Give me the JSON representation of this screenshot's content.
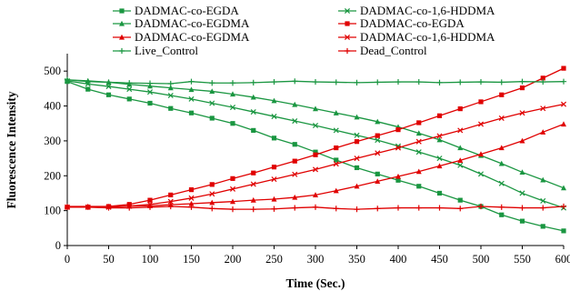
{
  "chart_data": {
    "type": "line",
    "xlabel": "Time (Sec.)",
    "ylabel": "Fluorescence Intensity",
    "xlim": [
      0,
      600
    ],
    "ylim": [
      0,
      550
    ],
    "xticks": [
      0,
      50,
      100,
      150,
      200,
      250,
      300,
      350,
      400,
      450,
      500,
      550,
      600
    ],
    "yticks": [
      0,
      100,
      200,
      300,
      400,
      500
    ],
    "grid": false,
    "legend_position": "top",
    "series": [
      {
        "name": "DADMAC-co-EGDA",
        "color": "#1a9641",
        "marker": "square",
        "x": [
          0,
          25,
          50,
          75,
          100,
          125,
          150,
          175,
          200,
          225,
          250,
          275,
          300,
          325,
          350,
          375,
          400,
          425,
          450,
          475,
          500,
          525,
          550,
          575,
          600
        ],
        "y": [
          470,
          448,
          432,
          420,
          408,
          393,
          380,
          365,
          350,
          330,
          308,
          290,
          268,
          245,
          223,
          205,
          187,
          170,
          150,
          130,
          112,
          88,
          70,
          55,
          42
        ]
      },
      {
        "name": "DADMAC-co-EGDMA",
        "color": "#1a9641",
        "marker": "triangle",
        "x": [
          0,
          25,
          50,
          75,
          100,
          125,
          150,
          175,
          200,
          225,
          250,
          275,
          300,
          325,
          350,
          375,
          400,
          425,
          450,
          475,
          500,
          525,
          550,
          575,
          600
        ],
        "y": [
          475,
          472,
          468,
          462,
          457,
          452,
          447,
          442,
          434,
          425,
          415,
          404,
          392,
          380,
          368,
          355,
          340,
          322,
          303,
          280,
          258,
          235,
          210,
          188,
          165
        ]
      },
      {
        "name": "DADMAC-co-1,6-HDDMA",
        "color": "#1a9641",
        "marker": "cross",
        "x": [
          0,
          25,
          50,
          75,
          100,
          125,
          150,
          175,
          200,
          225,
          250,
          275,
          300,
          325,
          350,
          375,
          400,
          425,
          450,
          475,
          500,
          525,
          550,
          575,
          600
        ],
        "y": [
          472,
          463,
          456,
          448,
          440,
          430,
          420,
          408,
          396,
          383,
          370,
          357,
          344,
          330,
          316,
          302,
          285,
          268,
          250,
          230,
          205,
          178,
          150,
          128,
          108
        ]
      },
      {
        "name": "DADMAC-co-EGDA",
        "color": "#e00000",
        "marker": "square",
        "x": [
          0,
          25,
          50,
          75,
          100,
          125,
          150,
          175,
          200,
          225,
          250,
          275,
          300,
          325,
          350,
          375,
          400,
          425,
          450,
          475,
          500,
          525,
          550,
          575,
          600
        ],
        "y": [
          110,
          110,
          112,
          118,
          130,
          145,
          160,
          175,
          192,
          208,
          225,
          242,
          260,
          280,
          298,
          315,
          332,
          352,
          372,
          392,
          412,
          432,
          452,
          480,
          508
        ]
      },
      {
        "name": "DADMAC-co-EGDMA",
        "color": "#e00000",
        "marker": "triangle",
        "x": [
          0,
          25,
          50,
          75,
          100,
          125,
          150,
          175,
          200,
          225,
          250,
          275,
          300,
          325,
          350,
          375,
          400,
          425,
          450,
          475,
          500,
          525,
          550,
          575,
          600
        ],
        "y": [
          112,
          112,
          112,
          113,
          114,
          117,
          120,
          123,
          126,
          130,
          133,
          138,
          145,
          157,
          170,
          184,
          198,
          212,
          228,
          244,
          262,
          280,
          300,
          325,
          348
        ]
      },
      {
        "name": "DADMAC-co-1,6-HDDMA",
        "color": "#e00000",
        "marker": "cross",
        "x": [
          0,
          25,
          50,
          75,
          100,
          125,
          150,
          175,
          200,
          225,
          250,
          275,
          300,
          325,
          350,
          375,
          400,
          425,
          450,
          475,
          500,
          525,
          550,
          575,
          600
        ],
        "y": [
          110,
          110,
          110,
          113,
          118,
          126,
          136,
          148,
          162,
          176,
          190,
          204,
          218,
          234,
          250,
          265,
          280,
          298,
          314,
          330,
          348,
          365,
          380,
          393,
          405
        ]
      },
      {
        "name": "Live_Control",
        "color": "#1a9641",
        "marker": "plus",
        "x": [
          0,
          25,
          50,
          75,
          100,
          125,
          150,
          175,
          200,
          225,
          250,
          275,
          300,
          325,
          350,
          375,
          400,
          425,
          450,
          475,
          500,
          525,
          550,
          575,
          600
        ],
        "y": [
          475,
          470,
          468,
          466,
          465,
          464,
          470,
          466,
          466,
          467,
          469,
          471,
          469,
          468,
          467,
          468,
          469,
          469,
          467,
          468,
          469,
          468,
          470,
          469,
          470
        ]
      },
      {
        "name": "Dead_Control",
        "color": "#e00000",
        "marker": "plus",
        "x": [
          0,
          25,
          50,
          75,
          100,
          125,
          150,
          175,
          200,
          225,
          250,
          275,
          300,
          325,
          350,
          375,
          400,
          425,
          450,
          475,
          500,
          525,
          550,
          575,
          600
        ],
        "y": [
          110,
          110,
          108,
          108,
          110,
          112,
          110,
          106,
          104,
          104,
          105,
          108,
          110,
          106,
          104,
          106,
          108,
          108,
          108,
          106,
          112,
          110,
          108,
          108,
          112
        ]
      }
    ],
    "legend_order": [
      0,
      2,
      1,
      3,
      4,
      5,
      6,
      7
    ]
  }
}
